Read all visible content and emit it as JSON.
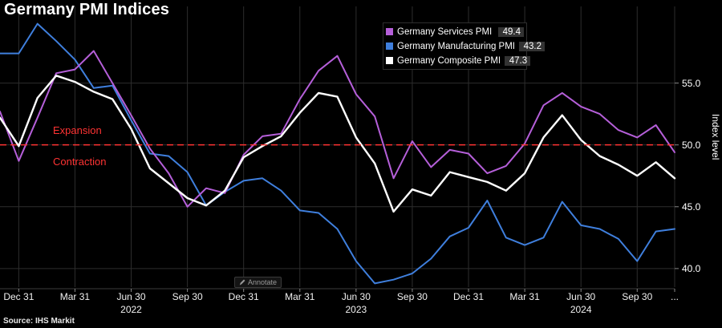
{
  "title": "Germany PMI Indices",
  "source": "Source: IHS Markit",
  "annotate": {
    "label": "Annotate"
  },
  "zone_labels": {
    "expansion": "Expansion",
    "contraction": "Contraction"
  },
  "legend": {
    "position": "top-center",
    "items": [
      {
        "label": "Germany Services PMI",
        "value": "49.4",
        "color": "#b55fd9"
      },
      {
        "label": "Germany Manufacturing PMI",
        "value": "43.2",
        "color": "#3f7fdd"
      },
      {
        "label": "Germany Composite PMI",
        "value": "47.3",
        "color": "#ffffff"
      }
    ]
  },
  "colors": {
    "background": "#000000",
    "grid": "#2d2d2d",
    "axis_line": "#3d3d3d",
    "tick_mark": "#888888",
    "axis_text": "#ffffff",
    "reference_red": "#ff3333"
  },
  "chart_data": {
    "type": "line",
    "title": "Germany PMI Indices",
    "ylabel": "Index level",
    "ylim": [
      38.5,
      61.2
    ],
    "y_ticks": [
      "40.0",
      "45.0",
      "50.0",
      "55.0"
    ],
    "grid": true,
    "legend_position": "top-center",
    "reference_line": {
      "value": 50,
      "color": "#ff3333",
      "style": "dashed",
      "label_above": "Expansion",
      "label_below": "Contraction"
    },
    "x": [
      "2021-11",
      "2021-12",
      "2022-01",
      "2022-02",
      "2022-03",
      "2022-04",
      "2022-05",
      "2022-06",
      "2022-07",
      "2022-08",
      "2022-09",
      "2022-10",
      "2022-11",
      "2022-12",
      "2023-01",
      "2023-02",
      "2023-03",
      "2023-04",
      "2023-05",
      "2023-06",
      "2023-07",
      "2023-08",
      "2023-09",
      "2023-10",
      "2023-11",
      "2023-12",
      "2024-01",
      "2024-02",
      "2024-03",
      "2024-04",
      "2024-05",
      "2024-06",
      "2024-07",
      "2024-08",
      "2024-09",
      "2024-10",
      "2024-11"
    ],
    "x_ticks": [
      {
        "index": 1,
        "label": "Dec 31"
      },
      {
        "index": 4,
        "label": "Mar 31"
      },
      {
        "index": 7,
        "label": "Jun 30"
      },
      {
        "index": 10,
        "label": "Sep 30"
      },
      {
        "index": 13,
        "label": "Dec 31"
      },
      {
        "index": 16,
        "label": "Mar 31"
      },
      {
        "index": 19,
        "label": "Jun 30"
      },
      {
        "index": 22,
        "label": "Sep 30"
      },
      {
        "index": 25,
        "label": "Dec 31"
      },
      {
        "index": 28,
        "label": "Mar 31"
      },
      {
        "index": 31,
        "label": "Jun 30"
      },
      {
        "index": 34,
        "label": "Sep 30"
      },
      {
        "index": 36,
        "label": "..."
      }
    ],
    "year_labels": [
      {
        "index": 7,
        "label": "2022"
      },
      {
        "index": 19,
        "label": "2023"
      },
      {
        "index": 31,
        "label": "2024"
      }
    ],
    "series": [
      {
        "name": "Germany Services PMI",
        "color": "#b55fd9",
        "last_value": 49.4,
        "values": [
          52.7,
          48.7,
          52.2,
          55.8,
          56.1,
          57.6,
          55.0,
          52.4,
          49.7,
          47.7,
          45.0,
          46.5,
          46.1,
          49.2,
          50.7,
          50.9,
          53.7,
          56.0,
          57.2,
          54.1,
          52.3,
          47.3,
          50.3,
          48.2,
          49.6,
          49.3,
          47.7,
          48.3,
          50.1,
          53.2,
          54.2,
          53.1,
          52.5,
          51.2,
          50.6,
          51.6,
          49.4
        ]
      },
      {
        "name": "Germany Manufacturing PMI",
        "color": "#3f7fdd",
        "last_value": 43.2,
        "values": [
          57.4,
          57.4,
          59.8,
          58.4,
          56.9,
          54.6,
          54.8,
          52.0,
          49.3,
          49.1,
          47.8,
          45.1,
          46.2,
          47.1,
          47.3,
          46.3,
          44.7,
          44.5,
          43.2,
          40.6,
          38.8,
          39.1,
          39.6,
          40.8,
          42.6,
          43.3,
          45.5,
          42.5,
          41.9,
          42.5,
          45.4,
          43.5,
          43.2,
          42.4,
          40.6,
          43.0,
          43.2
        ]
      },
      {
        "name": "Germany Composite PMI",
        "color": "#ffffff",
        "last_value": 47.3,
        "values": [
          52.2,
          49.9,
          53.8,
          55.6,
          55.1,
          54.3,
          53.7,
          51.3,
          48.1,
          46.9,
          45.7,
          45.1,
          46.3,
          49.0,
          49.9,
          50.7,
          52.6,
          54.2,
          53.9,
          50.6,
          48.5,
          44.6,
          46.4,
          45.9,
          47.8,
          47.4,
          47.0,
          46.3,
          47.7,
          50.6,
          52.4,
          50.4,
          49.1,
          48.4,
          47.5,
          48.6,
          47.3
        ]
      }
    ]
  }
}
